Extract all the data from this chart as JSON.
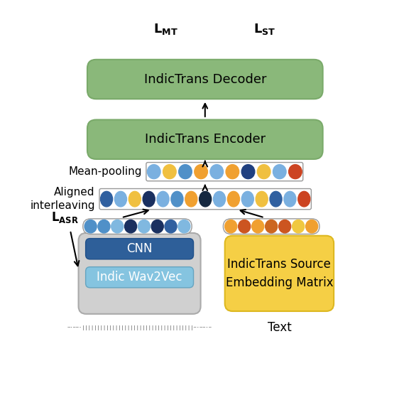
{
  "fig_width": 5.62,
  "fig_height": 5.7,
  "dpi": 100,
  "bg_color": "#ffffff",
  "green_color": "#8ab87a",
  "green_edge": "#7aaa6a",
  "yellow_color": "#f5cf45",
  "yellow_edge": "#ddb820",
  "blue_dark_color": "#2e5f99",
  "blue_dark_edge": "#1e4f89",
  "blue_light_color": "#85c4e0",
  "blue_light_edge": "#65a4c0",
  "gray_color": "#d0d0d0",
  "gray_edge": "#aaaaaa",
  "white": "#ffffff",
  "box_edge": "#999999",
  "text_dark": "#000000",
  "text_white": "#ffffff",
  "decoder_label": "IndicTrans Decoder",
  "encoder_label": "IndicTrans Encoder",
  "cnn_label": "CNN",
  "wav2vec_label": "Indic Wav2Vec",
  "emb_label": "IndicTrans Source\nEmbedding Matrix",
  "mp_label": "Mean-pooling",
  "ai_label": "Aligned\ninterleaving",
  "text_label": "Text",
  "speech_dots": [
    "#5090c8",
    "#5090c8",
    "#80b8e0",
    "#1a3060",
    "#80b8e0",
    "#1a3060",
    "#3060a0",
    "#80b8e0"
  ],
  "text_dots": [
    "#f0a030",
    "#cc5520",
    "#f0a030",
    "#cc6620",
    "#cc5520",
    "#f0c840",
    "#f0a030"
  ],
  "mp_dots": [
    "#7ab0e0",
    "#f0c040",
    "#5090c8",
    "#f0a030",
    "#7ab0e0",
    "#f0a030",
    "#204080",
    "#f0c040",
    "#7ab0e0",
    "#cc4422"
  ],
  "ai_dots": [
    "#3060a0",
    "#7ab0e0",
    "#f0c040",
    "#1a3060",
    "#7ab0e0",
    "#5090c8",
    "#f0a030",
    "#152840",
    "#7ab0e0",
    "#f0a030",
    "#7ab0e0",
    "#f0c040",
    "#3060a0",
    "#7ab0e0",
    "#cc4422"
  ]
}
